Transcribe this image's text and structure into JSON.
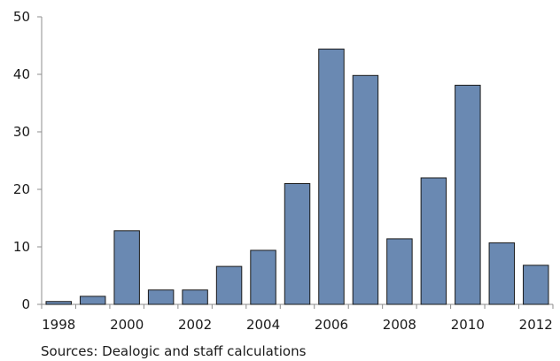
{
  "chart_data": {
    "type": "bar",
    "categories": [
      "1998",
      "1999",
      "2000",
      "2001",
      "2002",
      "2003",
      "2004",
      "2005",
      "2006",
      "2007",
      "2008",
      "2009",
      "2010",
      "2011",
      "2012"
    ],
    "values": [
      0.5,
      1.4,
      12.8,
      2.5,
      2.5,
      6.6,
      9.4,
      21.0,
      44.4,
      39.8,
      11.4,
      22.0,
      38.1,
      10.7,
      6.8
    ],
    "x_tick_labels": [
      "1998",
      "2000",
      "2002",
      "2004",
      "2006",
      "2008",
      "2010",
      "2012"
    ],
    "y_ticks": [
      0,
      10,
      20,
      30,
      40,
      50
    ],
    "ylim": [
      0,
      50
    ],
    "grid": false,
    "bar_color": "#6a89b2",
    "bar_outline_color": "#1a1a1a"
  },
  "source_note": "Sources: Dealogic and staff calculations"
}
